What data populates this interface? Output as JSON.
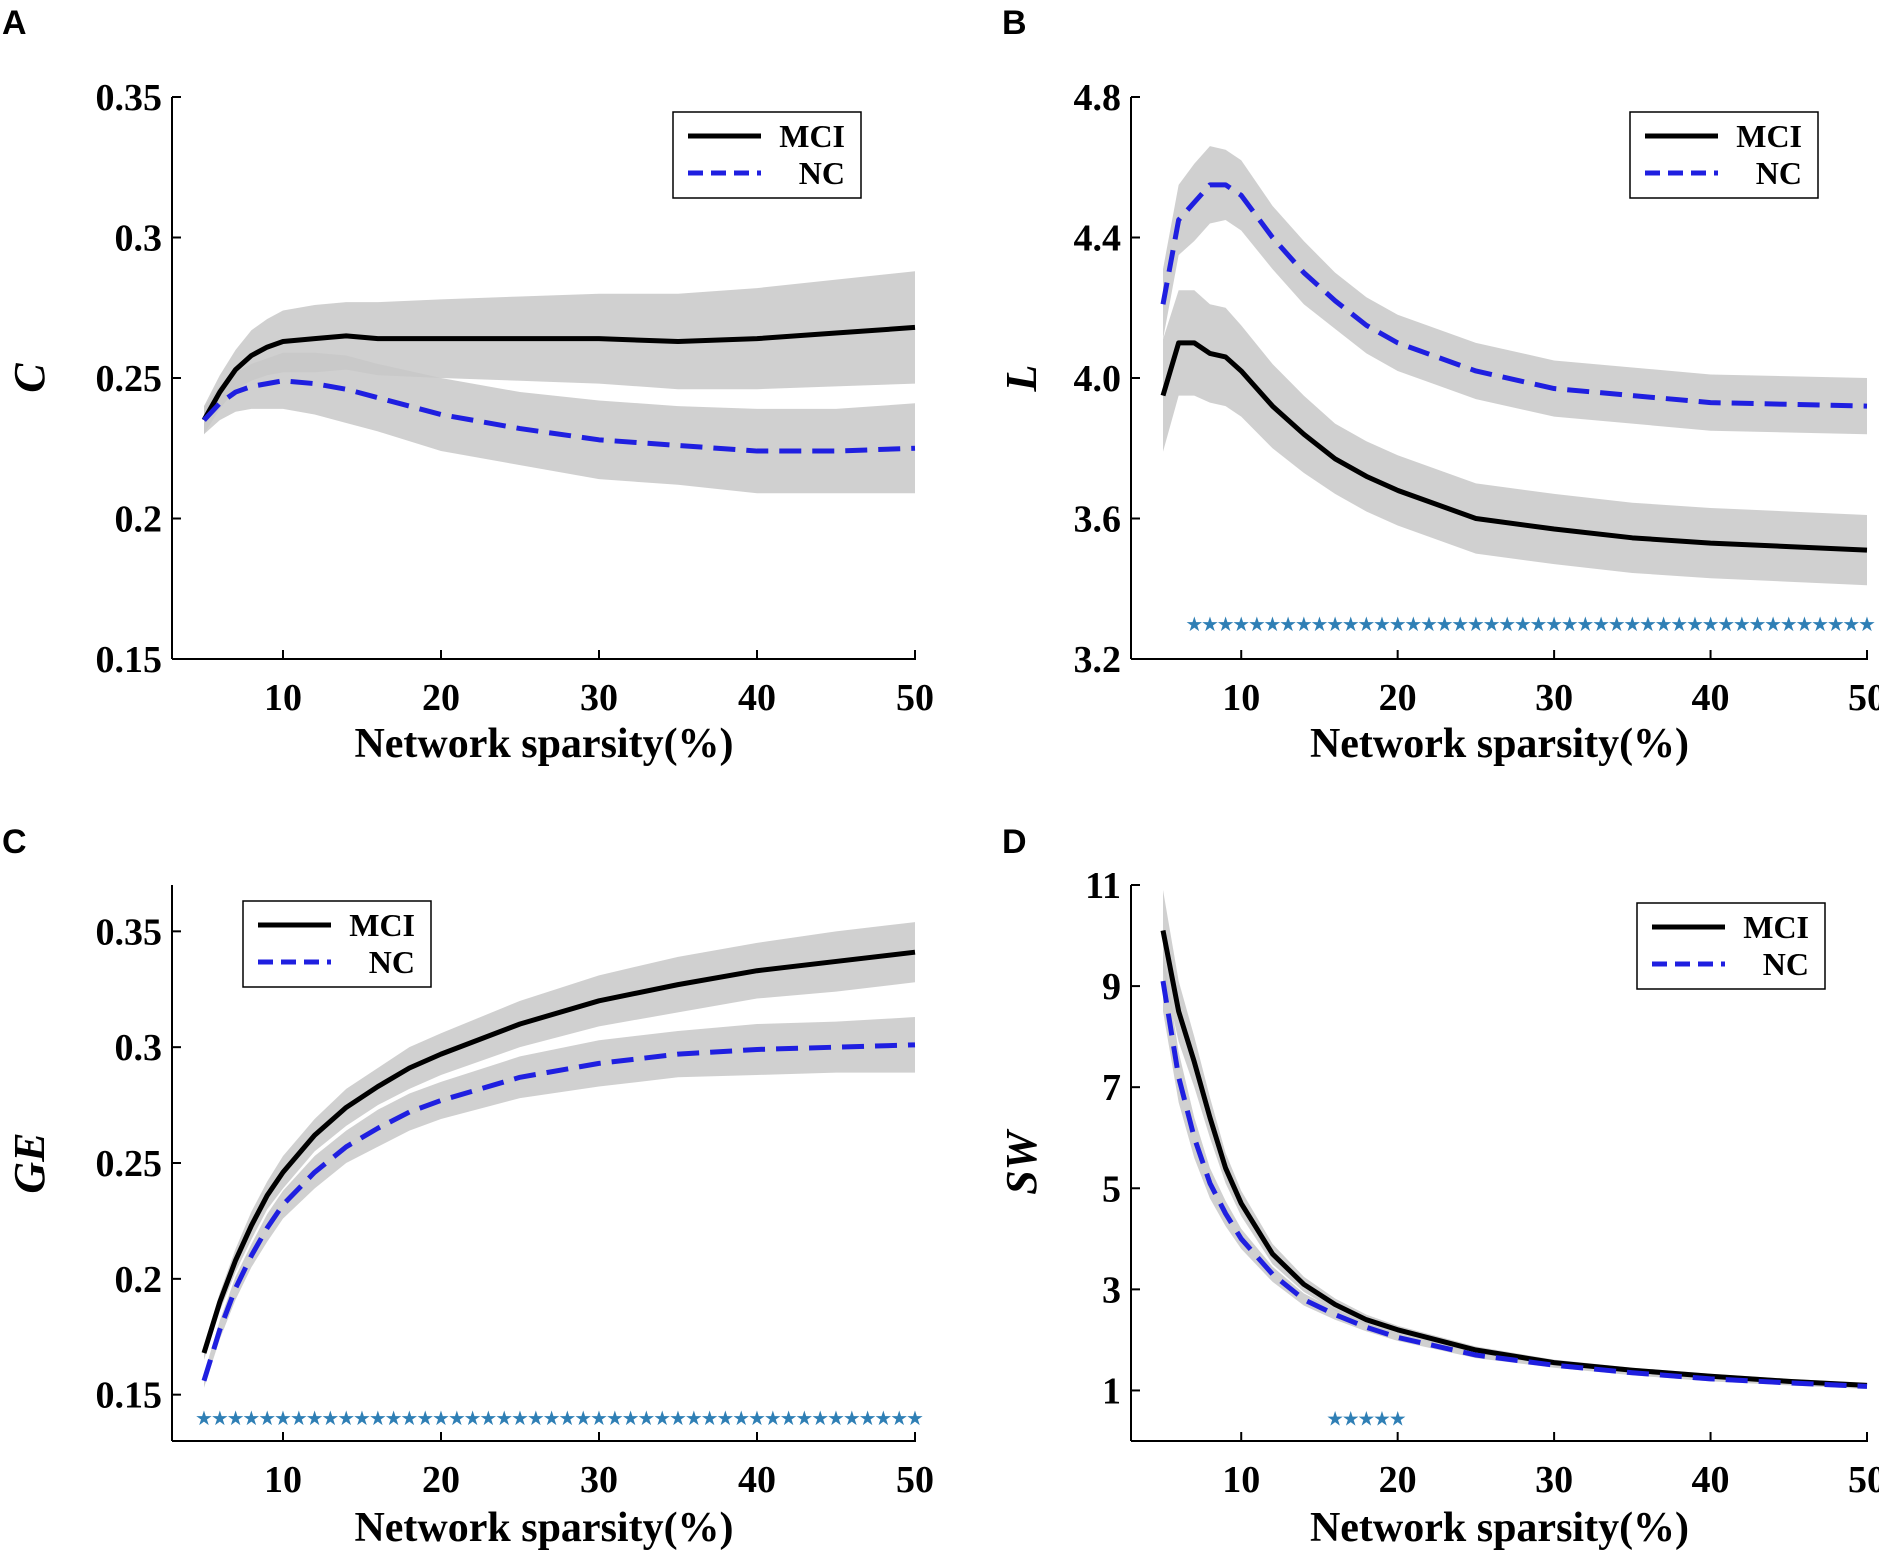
{
  "chart_data": [
    {
      "panel": "A",
      "type": "line",
      "xlabel": "Network sparsity(%)",
      "ylabel": "C",
      "xlim": [
        5,
        50
      ],
      "ylim": [
        0.15,
        0.35
      ],
      "xticks": [
        10,
        20,
        30,
        40,
        50
      ],
      "xtick_labels": [
        "10",
        "20",
        "30",
        "40",
        "50"
      ],
      "yticks": [
        0.15,
        0.2,
        0.25,
        0.3,
        0.35
      ],
      "ytick_labels": [
        "0.15",
        "0.2",
        "0.25",
        "0.3",
        "0.35"
      ],
      "legend": {
        "position": "top-right",
        "entries": [
          "MCI",
          "NC"
        ]
      },
      "x": [
        5,
        6,
        7,
        8,
        9,
        10,
        12,
        14,
        16,
        20,
        25,
        30,
        35,
        40,
        45,
        50
      ],
      "series": [
        {
          "name": "MCI",
          "color": "#000000",
          "style": "solid",
          "values": [
            0.235,
            0.245,
            0.253,
            0.258,
            0.261,
            0.263,
            0.264,
            0.265,
            0.264,
            0.264,
            0.264,
            0.264,
            0.263,
            0.264,
            0.266,
            0.268
          ],
          "band": [
            0.005,
            0.006,
            0.007,
            0.009,
            0.01,
            0.011,
            0.012,
            0.012,
            0.013,
            0.014,
            0.015,
            0.016,
            0.017,
            0.018,
            0.019,
            0.02
          ]
        },
        {
          "name": "NC",
          "color": "#1f1fe0",
          "style": "dashed",
          "values": [
            0.235,
            0.241,
            0.245,
            0.247,
            0.248,
            0.249,
            0.248,
            0.246,
            0.243,
            0.237,
            0.232,
            0.228,
            0.226,
            0.224,
            0.224,
            0.225
          ],
          "band": [
            0.005,
            0.006,
            0.007,
            0.008,
            0.009,
            0.01,
            0.011,
            0.012,
            0.012,
            0.013,
            0.013,
            0.014,
            0.014,
            0.015,
            0.015,
            0.016
          ]
        }
      ],
      "significance_x": []
    },
    {
      "panel": "B",
      "type": "line",
      "xlabel": "Network sparsity(%)",
      "ylabel": "L",
      "xlim": [
        5,
        50
      ],
      "ylim": [
        3.2,
        4.8
      ],
      "xticks": [
        10,
        20,
        30,
        40,
        50
      ],
      "xtick_labels": [
        "10",
        "20",
        "30",
        "40",
        "50"
      ],
      "yticks": [
        3.2,
        3.6,
        4.0,
        4.4,
        4.8
      ],
      "ytick_labels": [
        "3.2",
        "3.6",
        "4.0",
        "4.4",
        "4.8"
      ],
      "legend": {
        "position": "top-right",
        "entries": [
          "MCI",
          "NC"
        ]
      },
      "x": [
        5,
        6,
        7,
        8,
        9,
        10,
        12,
        14,
        16,
        18,
        20,
        25,
        30,
        35,
        40,
        45,
        50
      ],
      "series": [
        {
          "name": "MCI",
          "color": "#000000",
          "style": "solid",
          "values": [
            3.95,
            4.1,
            4.1,
            4.07,
            4.06,
            4.02,
            3.92,
            3.84,
            3.77,
            3.72,
            3.68,
            3.6,
            3.57,
            3.545,
            3.53,
            3.52,
            3.51
          ],
          "band": [
            0.16,
            0.15,
            0.15,
            0.14,
            0.14,
            0.13,
            0.12,
            0.11,
            0.1,
            0.1,
            0.1,
            0.1,
            0.1,
            0.1,
            0.1,
            0.1,
            0.1
          ]
        },
        {
          "name": "NC",
          "color": "#1f1fe0",
          "style": "dashed",
          "values": [
            4.21,
            4.45,
            4.5,
            4.55,
            4.55,
            4.52,
            4.4,
            4.3,
            4.22,
            4.15,
            4.1,
            4.02,
            3.97,
            3.95,
            3.93,
            3.925,
            3.92
          ],
          "band": [
            0.1,
            0.1,
            0.11,
            0.11,
            0.1,
            0.1,
            0.09,
            0.09,
            0.08,
            0.08,
            0.08,
            0.08,
            0.08,
            0.08,
            0.08,
            0.08,
            0.08
          ]
        }
      ],
      "significance_x": [
        7,
        8,
        9,
        10,
        11,
        12,
        13,
        14,
        15,
        16,
        17,
        18,
        19,
        20,
        21,
        22,
        23,
        24,
        25,
        26,
        27,
        28,
        29,
        30,
        31,
        32,
        33,
        34,
        35,
        36,
        37,
        38,
        39,
        40,
        41,
        42,
        43,
        44,
        45,
        46,
        47,
        48,
        49,
        50
      ],
      "significance_y": 3.3
    },
    {
      "panel": "C",
      "type": "line",
      "xlabel": "Network sparsity(%)",
      "ylabel": "GE",
      "xlim": [
        5,
        50
      ],
      "ylim": [
        0.13,
        0.37
      ],
      "xticks": [
        10,
        20,
        30,
        40,
        50
      ],
      "xtick_labels": [
        "10",
        "20",
        "30",
        "40",
        "50"
      ],
      "yticks": [
        0.15,
        0.2,
        0.25,
        0.3,
        0.35
      ],
      "ytick_labels": [
        "0.15",
        "0.2",
        "0.25",
        "0.3",
        "0.35"
      ],
      "legend": {
        "position": "top-left",
        "entries": [
          "MCI",
          "NC"
        ]
      },
      "x": [
        5,
        6,
        7,
        8,
        9,
        10,
        12,
        14,
        16,
        18,
        20,
        25,
        30,
        35,
        40,
        45,
        50
      ],
      "series": [
        {
          "name": "MCI",
          "color": "#000000",
          "style": "solid",
          "values": [
            0.168,
            0.19,
            0.208,
            0.223,
            0.236,
            0.246,
            0.262,
            0.274,
            0.283,
            0.291,
            0.297,
            0.31,
            0.32,
            0.327,
            0.333,
            0.337,
            0.341
          ],
          "band": [
            0.003,
            0.004,
            0.005,
            0.006,
            0.006,
            0.007,
            0.007,
            0.008,
            0.008,
            0.009,
            0.009,
            0.01,
            0.011,
            0.012,
            0.012,
            0.013,
            0.013
          ]
        },
        {
          "name": "NC",
          "color": "#1f1fe0",
          "style": "dashed",
          "values": [
            0.156,
            0.178,
            0.196,
            0.21,
            0.222,
            0.232,
            0.246,
            0.257,
            0.265,
            0.272,
            0.277,
            0.287,
            0.293,
            0.297,
            0.299,
            0.3,
            0.301
          ],
          "band": [
            0.003,
            0.004,
            0.005,
            0.005,
            0.006,
            0.006,
            0.007,
            0.007,
            0.008,
            0.008,
            0.008,
            0.009,
            0.01,
            0.01,
            0.011,
            0.011,
            0.012
          ]
        }
      ],
      "significance_x": [
        5,
        6,
        7,
        8,
        9,
        10,
        11,
        12,
        13,
        14,
        15,
        16,
        17,
        18,
        19,
        20,
        21,
        22,
        23,
        24,
        25,
        26,
        27,
        28,
        29,
        30,
        31,
        32,
        33,
        34,
        35,
        36,
        37,
        38,
        39,
        40,
        41,
        42,
        43,
        44,
        45,
        46,
        47,
        48,
        49,
        50
      ],
      "significance_y": 0.14
    },
    {
      "panel": "D",
      "type": "line",
      "xlabel": "Network sparsity(%)",
      "ylabel": "SW",
      "xlim": [
        5,
        50
      ],
      "ylim": [
        0,
        11
      ],
      "xticks": [
        10,
        20,
        30,
        40,
        50
      ],
      "xtick_labels": [
        "10",
        "20",
        "30",
        "40",
        "50"
      ],
      "yticks": [
        1,
        3,
        5,
        7,
        9,
        11
      ],
      "ytick_labels": [
        "1",
        "3",
        "5",
        "7",
        "9",
        "11"
      ],
      "legend": {
        "position": "top-right",
        "entries": [
          "MCI",
          "NC"
        ]
      },
      "x": [
        5,
        6,
        7,
        8,
        9,
        10,
        12,
        14,
        16,
        18,
        20,
        25,
        30,
        35,
        40,
        45,
        50
      ],
      "series": [
        {
          "name": "MCI",
          "color": "#000000",
          "style": "solid",
          "values": [
            10.1,
            8.5,
            7.5,
            6.4,
            5.4,
            4.7,
            3.7,
            3.1,
            2.7,
            2.4,
            2.2,
            1.8,
            1.55,
            1.4,
            1.28,
            1.18,
            1.1
          ],
          "band": [
            0.8,
            0.6,
            0.5,
            0.4,
            0.3,
            0.25,
            0.2,
            0.15,
            0.12,
            0.1,
            0.08,
            0.07,
            0.06,
            0.05,
            0.05,
            0.05,
            0.05
          ]
        },
        {
          "name": "NC",
          "color": "#1f1fe0",
          "style": "dashed",
          "values": [
            9.1,
            7.2,
            6.0,
            5.1,
            4.5,
            4.0,
            3.3,
            2.8,
            2.5,
            2.25,
            2.05,
            1.7,
            1.5,
            1.35,
            1.23,
            1.15,
            1.08
          ],
          "band": [
            0.6,
            0.5,
            0.4,
            0.3,
            0.25,
            0.2,
            0.15,
            0.12,
            0.1,
            0.08,
            0.07,
            0.06,
            0.05,
            0.05,
            0.05,
            0.05,
            0.05
          ]
        }
      ],
      "significance_x": [
        16,
        17,
        18,
        19,
        20
      ],
      "significance_y": 0.45
    }
  ]
}
